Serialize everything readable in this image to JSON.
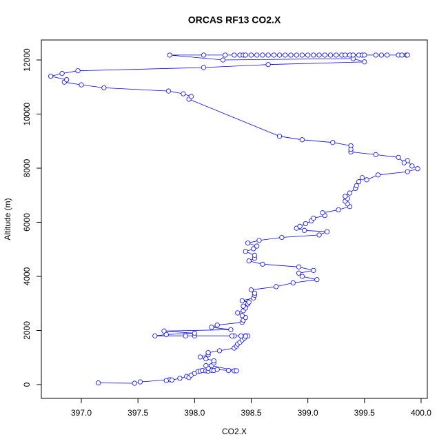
{
  "chart_data": {
    "type": "line_points",
    "title": "ORCAS RF13 CO2.X",
    "x_label": "CO2.X",
    "y_label": "Altitude (m)",
    "color": "#0000ff",
    "xlim": [
      396.647,
      400.055
    ],
    "ylim": [
      -510,
      12739
    ],
    "xticks": [
      {
        "value": 397,
        "label": "397.0"
      },
      {
        "value": 397.5,
        "label": "397.5"
      },
      {
        "value": 398,
        "label": "398.0"
      },
      {
        "value": 398.5,
        "label": "398.5"
      },
      {
        "value": 399,
        "label": "399.0"
      },
      {
        "value": 399.5,
        "label": "399.5"
      },
      {
        "value": 400,
        "label": "400.0"
      }
    ],
    "yticks": [
      0,
      2000,
      4000,
      6000,
      8000,
      10000,
      12000
    ],
    "x": [
      397.15,
      397.47,
      397.52,
      397.78,
      397.75,
      397.8,
      397.87,
      397.93,
      397.95,
      397.97,
      398.0,
      398.03,
      398.05,
      398.07,
      398.1,
      398.12,
      398.15,
      398.17,
      398.2,
      398.3,
      398.35,
      398.37,
      398.15,
      398.12,
      398.1,
      398.17,
      398.17,
      398.1,
      398.05,
      398.12,
      398.12,
      398.22,
      398.35,
      398.37,
      398.38,
      398.4,
      398.42,
      398.44,
      398.45,
      398.47,
      398.45,
      398.41,
      398.35,
      398.33,
      398.0,
      397.92,
      397.65,
      397.75,
      398.0,
      397.73,
      398.32,
      398.15,
      398.2,
      398.42,
      398.43,
      398.45,
      398.42,
      398.38,
      398.43,
      398.45,
      398.43,
      398.47,
      398.48,
      398.42,
      398.52,
      398.53,
      398.53,
      398.5,
      398.72,
      398.87,
      399.08,
      398.95,
      398.92,
      399.05,
      398.92,
      398.6,
      398.48,
      398.53,
      398.53,
      398.45,
      398.52,
      398.55,
      398.47,
      398.57,
      398.77,
      399.1,
      399.17,
      398.97,
      398.9,
      398.93,
      398.98,
      399.03,
      399.05,
      399.15,
      399.13,
      399.27,
      399.37,
      399.35,
      399.33,
      399.35,
      399.33,
      399.37,
      399.42,
      399.43,
      399.45,
      399.48,
      399.52,
      399.62,
      399.88,
      399.97,
      399.92,
      399.88,
      399.85,
      399.8,
      399.6,
      399.38,
      399.38,
      399.38,
      399.22,
      398.95,
      398.75,
      397.95,
      397.97,
      397.9,
      397.77,
      397.2,
      397.0,
      396.85,
      396.87,
      396.73,
      396.83,
      396.97,
      398.08,
      398.65,
      399.5,
      399.4,
      398.25,
      397.78,
      398.08,
      398.27,
      398.35,
      398.4,
      398.43,
      398.45,
      398.5,
      398.55,
      398.6,
      398.65,
      398.7,
      398.75,
      398.8,
      398.85,
      398.9,
      398.95,
      399.0,
      399.05,
      399.1,
      399.15,
      399.2,
      399.25,
      399.3,
      399.33,
      399.37,
      399.4,
      399.45,
      399.48,
      399.5,
      399.6,
      399.65,
      399.7,
      399.8,
      399.83,
      399.87,
      399.88
    ],
    "values": [
      60,
      50,
      100,
      180,
      150,
      170,
      230,
      300,
      260,
      350,
      420,
      480,
      500,
      520,
      510,
      500,
      530,
      520,
      560,
      520,
      510,
      510,
      700,
      600,
      700,
      800,
      880,
      950,
      1020,
      1100,
      1180,
      1250,
      1350,
      1420,
      1500,
      1560,
      1650,
      1720,
      1800,
      1800,
      1790,
      1800,
      1800,
      1800,
      1800,
      1800,
      1800,
      1850,
      1900,
      1980,
      2030,
      2120,
      2200,
      2300,
      2380,
      2480,
      2550,
      2650,
      2730,
      2830,
      2900,
      2980,
      3050,
      3100,
      3200,
      3300,
      3380,
      3500,
      3620,
      3760,
      3880,
      4000,
      4120,
      4220,
      4350,
      4450,
      4570,
      4670,
      4780,
      4920,
      5020,
      5120,
      5230,
      5330,
      5440,
      5530,
      5650,
      5700,
      5780,
      5850,
      5950,
      6050,
      6150,
      6250,
      6350,
      6460,
      6580,
      6680,
      6780,
      6880,
      6960,
      7080,
      7250,
      7350,
      7500,
      7650,
      7570,
      7750,
      7870,
      7980,
      8080,
      8280,
      8200,
      8400,
      8500,
      8600,
      8700,
      8830,
      8950,
      9050,
      9180,
      10550,
      10650,
      10750,
      10850,
      10970,
      11080,
      11180,
      11270,
      11400,
      11500,
      11600,
      11720,
      11830,
      11930,
      12050,
      12000,
      12180,
      12180,
      12180,
      12180,
      12180,
      12180,
      12180,
      12180,
      12180,
      12180,
      12180,
      12180,
      12180,
      12180,
      12180,
      12180,
      12180,
      12180,
      12180,
      12180,
      12180,
      12180,
      12180,
      12180,
      12180,
      12180,
      12180,
      12180,
      12180,
      12180,
      12180,
      12180,
      12180,
      12180,
      12180,
      12180,
      12180
    ]
  }
}
